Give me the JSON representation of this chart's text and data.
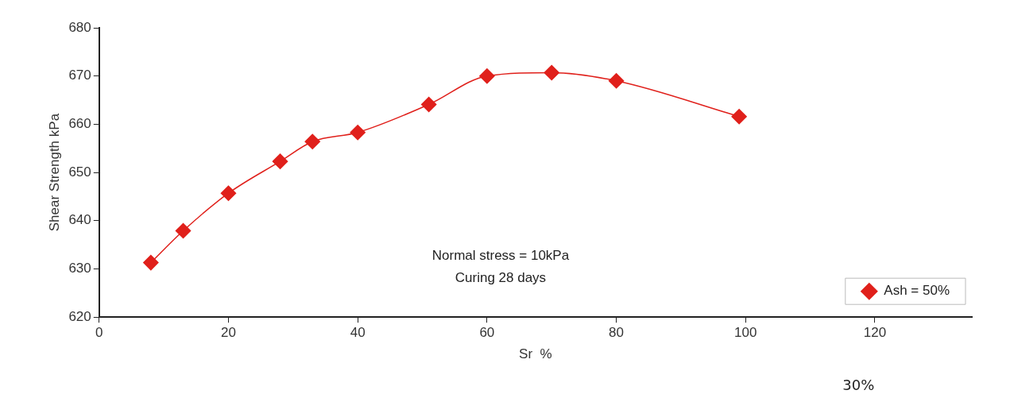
{
  "chart_data": {
    "type": "line",
    "xlabel": "Sr  %",
    "ylabel": "Shear Strength kPa",
    "annotations": [
      "Normal stress = 10kPa",
      "Curing 28 days",
      "30%"
    ],
    "x": [
      8,
      13,
      20,
      28,
      33,
      40,
      51,
      60,
      70,
      80,
      99
    ],
    "series": [
      {
        "name": "Ash = 50%",
        "color": "#e0201b",
        "values": [
          631.3,
          637.9,
          645.7,
          652.3,
          656.4,
          658.3,
          664.1,
          670,
          670.7,
          669,
          661.6
        ]
      }
    ],
    "xlim": [
      0,
      135
    ],
    "xticks": [
      0,
      20,
      40,
      60,
      80,
      100,
      120
    ],
    "ylim": [
      620,
      680
    ],
    "yticks": [
      620,
      630,
      640,
      650,
      660,
      670,
      680
    ],
    "grid": false,
    "legend": "bottom right",
    "marker": "diamond",
    "line_style": "solid"
  }
}
